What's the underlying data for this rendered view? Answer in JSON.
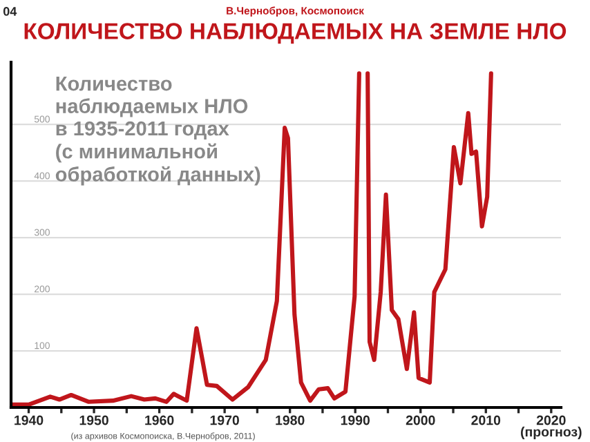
{
  "chart_data": {
    "type": "line",
    "title": "КОЛИЧЕСТВО НАБЛЮДАЕМЫХ НА ЗЕМЛЕ НЛО",
    "subtitle": "В.Чернобров, Космопоиск",
    "annotations": [
      "04",
      "Количество\nнаблюдаемых НЛО\nв 1935-2011 годах\n(с минимальной\nобработкой данных)",
      "(из архивов Космопоиска, В.Чернобров, 2011)"
    ],
    "series": [
      {
        "color": "#c0161b",
        "x": [
          1937.4,
          1940,
          1943.3,
          1944.7,
          1946.5,
          1949.2,
          1952.9,
          1955.7,
          1957.7,
          1959.4,
          1961.1,
          1962.2,
          1964.2,
          1965.7,
          1966.6,
          1967.3,
          1968.8,
          1971.2,
          1973.6,
          1976.3,
          1978.0,
          1979.2,
          1979.7,
          1980.7,
          1981.7,
          1983.1,
          1984.4,
          1985.8,
          1986.8,
          1988.5,
          1989.9,
          1990.6,
          1991.2,
          1991.9,
          1992.2,
          1992.9,
          1993.9,
          1994.7,
          1995.6,
          1996.6,
          1997.9,
          1999.0,
          1999.7,
          2001.4,
          2002.1,
          2003.8,
          2005.1,
          2006.1,
          2007.3,
          2007.8,
          2008.5,
          2009.4,
          2010.2,
          2010.8
        ],
        "values": [
          5,
          5,
          19,
          14,
          22,
          10,
          12,
          20,
          14,
          16,
          10,
          24,
          12,
          140,
          84,
          40,
          38,
          14,
          36,
          84,
          188,
          494,
          476,
          164,
          44,
          12,
          32,
          34,
          16,
          28,
          196,
          590,
          null,
          590,
          116,
          84,
          204,
          376,
          172,
          156,
          68,
          168,
          52,
          44,
          204,
          244,
          460,
          396,
          520,
          448,
          452,
          320,
          372,
          590
        ]
      }
    ],
    "xlim": [
      1937.3,
      2021.5
    ],
    "ylim": [
      0,
      610
    ],
    "xticks": [
      1940,
      {
        "value": 1945,
        "label": null
      },
      1950,
      {
        "value": 1955,
        "label": null
      },
      1960,
      {
        "value": 1965,
        "label": null
      },
      1970,
      {
        "value": 1975,
        "label": null
      },
      1980,
      {
        "value": 1985,
        "label": null
      },
      1990,
      {
        "value": 1995,
        "label": null
      },
      2000,
      {
        "value": 2005,
        "label": null
      },
      2010,
      {
        "value": 2015,
        "label": null
      },
      {
        "value": 2020,
        "label": "2020\n(прогноз)"
      }
    ],
    "yticks": [
      100,
      200,
      300,
      400,
      500
    ],
    "grid": "y",
    "marker": "none",
    "line_style": "solid",
    "legend": false
  }
}
